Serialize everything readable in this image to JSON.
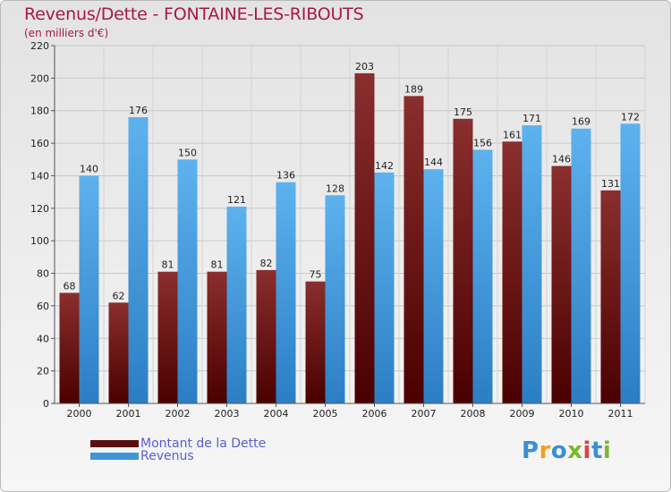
{
  "chart_data": {
    "type": "bar",
    "title": "Revenus/Dette - FONTAINE-LES-RIBOUTS",
    "subtitle": "(en milliers d'€)",
    "categories": [
      "2000",
      "2001",
      "2002",
      "2003",
      "2004",
      "2005",
      "2006",
      "2007",
      "2008",
      "2009",
      "2010",
      "2011"
    ],
    "series": [
      {
        "name": "Montant de la Dette",
        "color": "#6b1a1a",
        "values": [
          68,
          62,
          81,
          81,
          82,
          75,
          203,
          189,
          175,
          161,
          146,
          131
        ]
      },
      {
        "name": "Revenus",
        "color": "#4aa3e6",
        "values": [
          140,
          176,
          150,
          121,
          136,
          128,
          142,
          144,
          156,
          171,
          169,
          172
        ]
      }
    ],
    "ylim": [
      0,
      220
    ],
    "yticks": [
      0,
      20,
      40,
      60,
      80,
      100,
      120,
      140,
      160,
      180,
      200,
      220
    ],
    "grid": true,
    "legend_position": "bottom-left"
  },
  "logo": {
    "letters": [
      "P",
      "r",
      "o",
      "x",
      "i",
      "t",
      "i"
    ],
    "colors": [
      "#3a8ed8",
      "#f0a020",
      "#3a8ed8",
      "#7ab82c",
      "#e04040",
      "#3a8ed8",
      "#7ab82c"
    ]
  }
}
